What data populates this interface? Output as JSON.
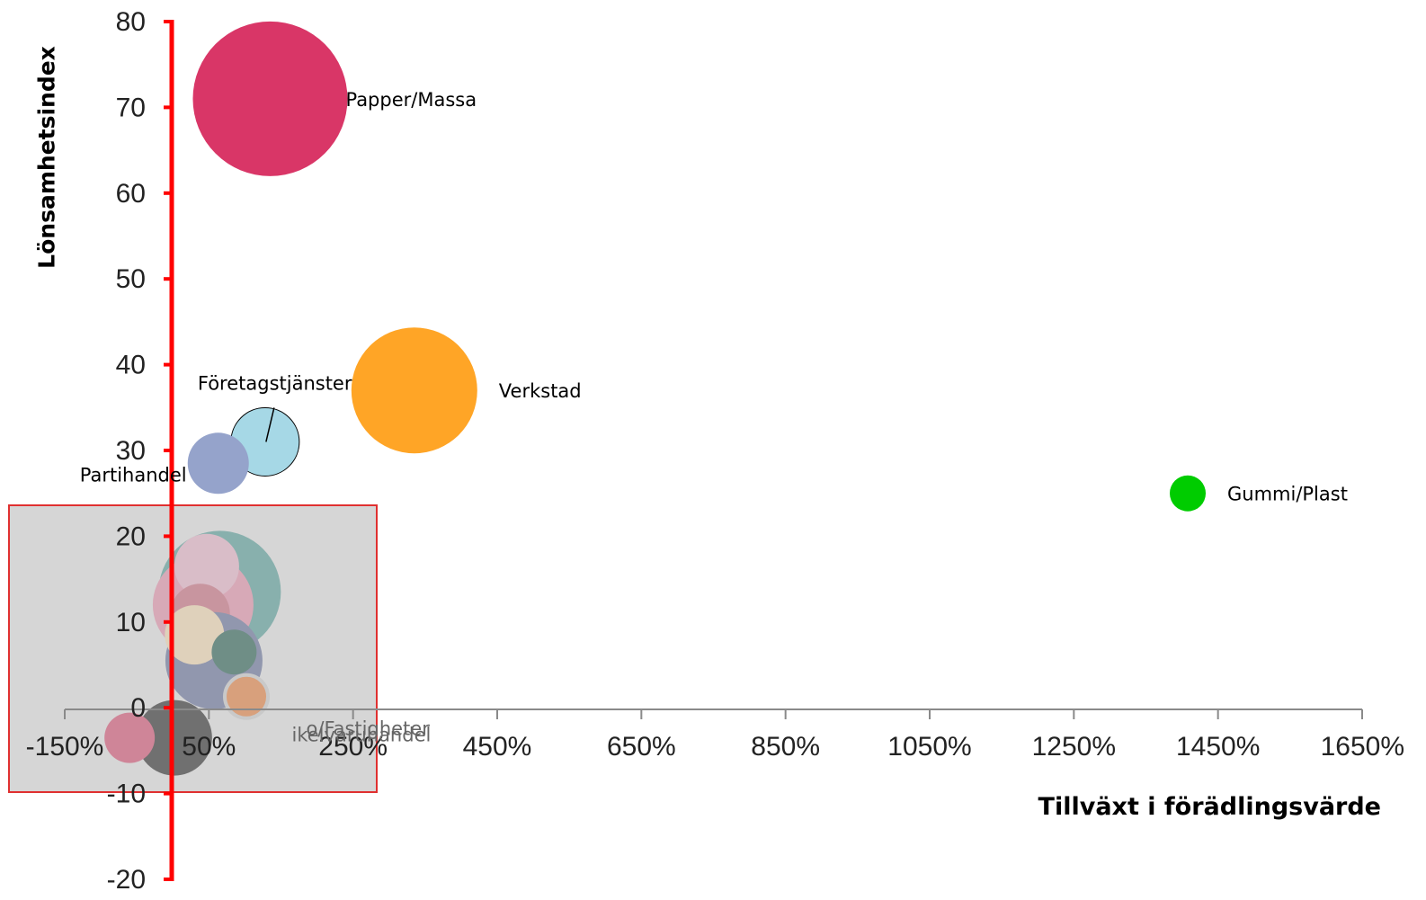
{
  "chart_data": {
    "type": "bubble",
    "title": "",
    "xlabel": "Tillväxt i förädlingsvärde",
    "ylabel": "Lönsamhetsindex",
    "xlim": [
      -150,
      1650
    ],
    "ylim": [
      -20,
      80
    ],
    "x_ticks": [
      -150,
      50,
      250,
      450,
      650,
      850,
      1050,
      1250,
      1450,
      1650
    ],
    "x_tick_labels": [
      "-150%",
      "50%",
      "250%",
      "450%",
      "650%",
      "850%",
      "1050%",
      "1250%",
      "1450%",
      "1650%"
    ],
    "y_ticks": [
      80,
      70,
      60,
      50,
      40,
      30,
      20,
      10,
      0,
      -10,
      -20
    ],
    "y_tick_labels": [
      "80",
      "70",
      "60",
      "50",
      "40",
      "30",
      "20",
      "10",
      "0",
      "-10",
      "-20"
    ],
    "points": [
      {
        "label": "Papper/Massa",
        "x": 135,
        "y": 71,
        "size": 86,
        "color": "#d93667"
      },
      {
        "label": "Verkstad",
        "x": 335,
        "y": 37,
        "size": 70,
        "color": "#ffa526"
      },
      {
        "label": "Gummi/Plast",
        "x": 1408,
        "y": 25,
        "size": 20,
        "color": "#00cc00"
      },
      {
        "label": "Företagstjänster",
        "x": 128,
        "y": 31,
        "size": 38,
        "color": "#a6d8e6"
      },
      {
        "label": "Partihandel",
        "x": 63,
        "y": 28.5,
        "size": 34,
        "color": "#95a3cb"
      },
      {
        "label": "",
        "x": 65,
        "y": 13.5,
        "size": 68,
        "color": "#88b0ad"
      },
      {
        "label": "",
        "x": 42,
        "y": 12,
        "size": 56,
        "color": "#d7a9b7"
      },
      {
        "label": "",
        "x": 47,
        "y": 16.5,
        "size": 36,
        "color": "#d9bdc8"
      },
      {
        "label": "",
        "x": 38,
        "y": 11,
        "size": 33,
        "color": "#c8959f"
      },
      {
        "label": "",
        "x": 57,
        "y": 5.5,
        "size": 54,
        "color": "#9197ae"
      },
      {
        "label": "",
        "x": 30,
        "y": 8.5,
        "size": 33,
        "color": "#dfd1bb"
      },
      {
        "label": "",
        "x": 85,
        "y": 6.5,
        "size": 25,
        "color": "#6f8e86"
      },
      {
        "label": "",
        "x": 102,
        "y": 1.3,
        "size": 24,
        "color": "#d8a07c"
      },
      {
        "label": "",
        "x": 2,
        "y": -3.5,
        "size": 42,
        "color": "#707070"
      },
      {
        "label": "",
        "x": -60,
        "y": -3.5,
        "size": 28,
        "color": "#cf8598"
      }
    ],
    "overlay_labels": [
      {
        "text": "o/Fastigheter",
        "x": 185,
        "y": -3.2
      },
      {
        "text": "ikelvaruhandel",
        "x": 165,
        "y": -3.9
      }
    ],
    "highlight_box": {
      "color": "#e03030",
      "fill": "#d6d6d6"
    },
    "accent_color": "#ff0000"
  }
}
